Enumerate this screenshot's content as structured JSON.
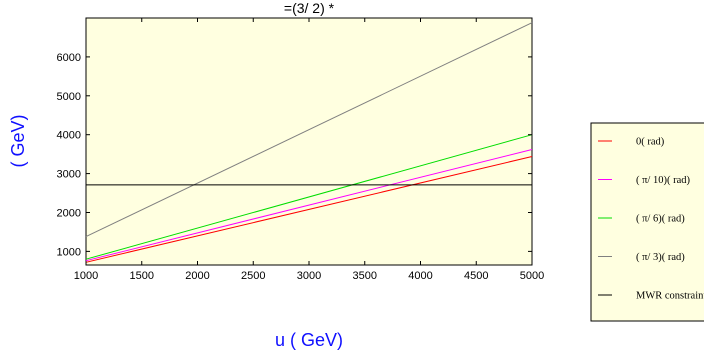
{
  "chart_data": {
    "type": "line",
    "title": "=(3/ 2) *",
    "xlabel": "u ( GeV)",
    "ylabel": "( GeV)",
    "xlim": [
      1000,
      5000
    ],
    "ylim": [
      650,
      7000
    ],
    "x_ticks": [
      "1000",
      "1500",
      "2000",
      "2500",
      "3000",
      "3500",
      "4000",
      "4500",
      "5000"
    ],
    "y_ticks": [
      "1000",
      "2000",
      "3000",
      "4000",
      "5000",
      "6000"
    ],
    "grid": false,
    "legend_position": "right",
    "series": [
      {
        "name": "0( rad)",
        "color": "#ff0000",
        "x": [
          1000,
          5000
        ],
        "y": [
          720,
          3440
        ]
      },
      {
        "name": "( π/ 10)( rad)",
        "color": "#ff00ff",
        "x": [
          1000,
          5000
        ],
        "y": [
          760,
          3620
        ]
      },
      {
        "name": "( π/ 6)( rad)",
        "color": "#00dd00",
        "x": [
          1000,
          5000
        ],
        "y": [
          800,
          4000
        ]
      },
      {
        "name": "( π/ 3)( rad)",
        "color": "#808080",
        "x": [
          1000,
          5000
        ],
        "y": [
          1380,
          6880
        ]
      },
      {
        "name": "MWR constraint",
        "color": "#000000",
        "x": [
          1000,
          5000
        ],
        "y": [
          2710,
          2710
        ]
      }
    ]
  }
}
